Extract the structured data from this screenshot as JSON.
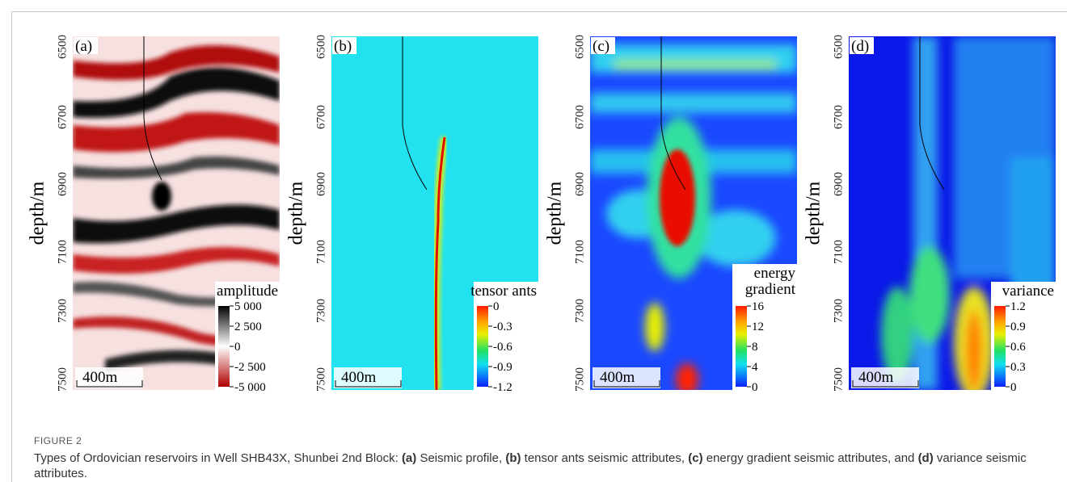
{
  "figure": {
    "label": "FIGURE 2",
    "caption": [
      "Types of Ordovician reservoirs in Well SHB43X, Shunbei 2nd Block: ",
      "(a)",
      " Seismic profile, ",
      "(b)",
      " tensor ants seismic attributes, ",
      "(c)",
      " energy gradient seismic attributes, and ",
      "(d)",
      " variance seismic attributes."
    ],
    "panels": [
      {
        "tag": "(a)",
        "axis_label": "depth/m",
        "depth_ticks": [
          "6500",
          "6700",
          "6900",
          "7100",
          "7300",
          "7500"
        ],
        "scale_bar": "400m",
        "colorbar": {
          "title": [
            "amplitude"
          ],
          "ticks": [
            "5 000",
            "2 500",
            "0",
            "-2 500",
            "-5 000"
          ]
        }
      },
      {
        "tag": "(b)",
        "axis_label": "depth/m",
        "depth_ticks": [
          "6500",
          "6700",
          "6900",
          "7100",
          "7300",
          "7500"
        ],
        "scale_bar": "400m",
        "colorbar": {
          "title": [
            "tensor ants"
          ],
          "ticks": [
            "0",
            "-0.3",
            "-0.6",
            "-0.9",
            "-1.2"
          ]
        }
      },
      {
        "tag": "(c)",
        "axis_label": "depth/m",
        "depth_ticks": [
          "6500",
          "6700",
          "6900",
          "7100",
          "7300",
          "7500"
        ],
        "scale_bar": "400m",
        "colorbar": {
          "title": [
            "energy",
            "gradient"
          ],
          "ticks": [
            "16",
            "12",
            "8",
            "4",
            "0"
          ]
        }
      },
      {
        "tag": "(d)",
        "axis_label": "depth/m",
        "depth_ticks": [
          "6500",
          "6700",
          "6900",
          "7100",
          "7300",
          "7500"
        ],
        "scale_bar": "400m",
        "colorbar": {
          "title": [
            "variance"
          ],
          "ticks": [
            "1.2",
            "0.9",
            "0.6",
            "0.3",
            "0"
          ]
        }
      }
    ]
  }
}
